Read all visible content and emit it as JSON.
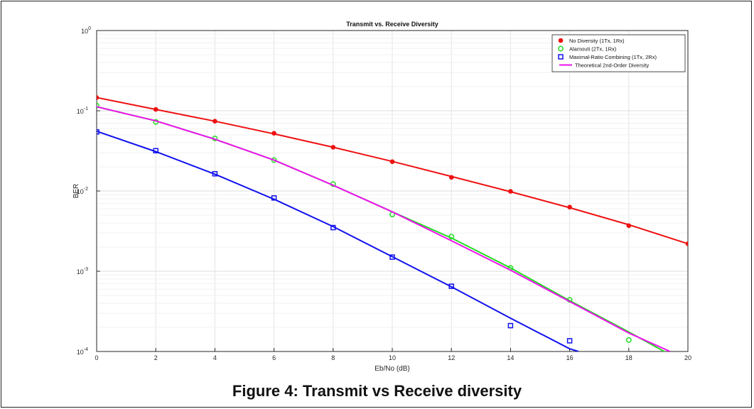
{
  "figure_caption": "Figure 4: Transmit vs Receive diversity",
  "chart_data": {
    "type": "line",
    "title": "Transmit vs. Receive Diversity",
    "xlabel": "Eb/No (dB)",
    "ylabel": "BER",
    "xlim": [
      0,
      20
    ],
    "ylim": [
      0.0001,
      1
    ],
    "yscale": "log",
    "grid": true,
    "legend_position": "top-right",
    "x_ticks": [
      0,
      2,
      4,
      6,
      8,
      10,
      12,
      14,
      16,
      18,
      20
    ],
    "y_ticks": [
      {
        "base": "10",
        "exp": "-4",
        "value": 0.0001
      },
      {
        "base": "10",
        "exp": "-3",
        "value": 0.001
      },
      {
        "base": "10",
        "exp": "-2",
        "value": 0.01
      },
      {
        "base": "10",
        "exp": "-1",
        "value": 0.1
      },
      {
        "base": "10",
        "exp": "0",
        "value": 1
      }
    ],
    "series": [
      {
        "name": "No Diversity (1Tx, 1Rx)",
        "color": "#ee1111",
        "marker": "filled-circle",
        "x": [
          0,
          2,
          4,
          6,
          8,
          10,
          12,
          14,
          16,
          18,
          20
        ],
        "y": [
          0.146,
          0.104,
          0.0741,
          0.0524,
          0.0351,
          0.0232,
          0.0148,
          0.0099,
          0.0063,
          0.0037,
          0.0022
        ],
        "fit_x": [
          0,
          2,
          4,
          6,
          8,
          10,
          12,
          14,
          16,
          18,
          20
        ],
        "fit_y": [
          0.146,
          0.104,
          0.0741,
          0.0516,
          0.0351,
          0.0234,
          0.0152,
          0.0098,
          0.0062,
          0.0038,
          0.0022
        ]
      },
      {
        "name": "Alamouti (2Tx, 1Rx)",
        "color": "#22dd22",
        "marker": "open-circle",
        "x": [
          0,
          2,
          4,
          6,
          8,
          10,
          12,
          14,
          16,
          18
        ],
        "y": [
          0.116,
          0.0727,
          0.0452,
          0.0243,
          0.0122,
          0.0051,
          0.0027,
          0.0011,
          0.00044,
          0.000139
        ],
        "fit_x": [
          0,
          2,
          4,
          6,
          8,
          10,
          12,
          14,
          16,
          18,
          19.2
        ],
        "fit_y": [
          0.112,
          0.0748,
          0.0442,
          0.0243,
          0.0118,
          0.0055,
          0.0026,
          0.0011,
          0.00043,
          0.000175,
          0.0001
        ]
      },
      {
        "name": "Maximal-Ratio Combining (1Tx, 2Rx)",
        "color": "#1111ee",
        "marker": "open-square",
        "x": [
          0,
          2,
          4,
          6,
          8,
          10,
          12,
          14,
          16
        ],
        "y": [
          0.0546,
          0.0318,
          0.0164,
          0.0082,
          0.0035,
          0.0015,
          0.00065,
          0.00021,
          0.000136
        ],
        "fit_x": [
          0,
          2,
          4,
          6,
          8,
          10,
          12,
          14,
          16,
          16.3
        ],
        "fit_y": [
          0.0556,
          0.031,
          0.0162,
          0.0079,
          0.0036,
          0.00152,
          0.00064,
          0.00026,
          0.000108,
          0.0001
        ]
      },
      {
        "name": "Theoretical 2nd-Order Diversity",
        "color": "#ee11ee",
        "marker": "none",
        "x": [
          0,
          2,
          4,
          6,
          8,
          10,
          12,
          14,
          16,
          18,
          19.4
        ],
        "y": [
          0.112,
          0.0748,
          0.0442,
          0.0243,
          0.0118,
          0.0055,
          0.0024,
          0.00103,
          0.00042,
          0.00017,
          0.0001
        ]
      }
    ]
  }
}
